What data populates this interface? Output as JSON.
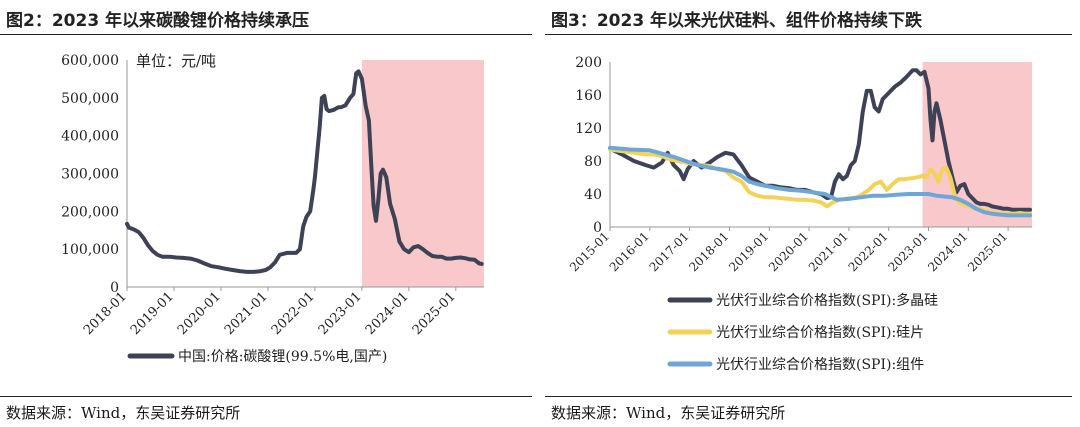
{
  "left": {
    "title": "图2：2023 年以来碳酸锂价格持续承压",
    "source": "数据来源：Wind，东吴证券研究所",
    "chart_data": {
      "type": "line",
      "title": "图2：2023 年以来碳酸锂价格持续承压",
      "unit_label": "单位：元/吨",
      "y_ticks": [
        "600,000",
        "500,000",
        "400,000",
        "300,000",
        "200,000",
        "100,000",
        "0"
      ],
      "x_ticks": [
        "2018-01",
        "2019-01",
        "2020-01",
        "2021-01",
        "2022-01",
        "2023-01",
        "2024-01",
        "2025-01"
      ],
      "ylim": [
        0,
        600000
      ],
      "xlim": [
        2018.0,
        2025.6
      ],
      "highlight": {
        "from": 2023.0,
        "to": 2025.6,
        "color": "#f8c8cb"
      },
      "series": [
        {
          "name": "中国:价格:碳酸锂(99.5%电,国产)",
          "color": "#3d4257",
          "x": [
            2018.0,
            2018.04,
            2018.15,
            2018.25,
            2018.35,
            2018.45,
            2018.55,
            2018.65,
            2018.75,
            2018.9,
            2019.05,
            2019.2,
            2019.35,
            2019.5,
            2019.65,
            2019.8,
            2019.95,
            2020.1,
            2020.25,
            2020.4,
            2020.55,
            2020.7,
            2020.85,
            2020.95,
            2021.05,
            2021.15,
            2021.25,
            2021.4,
            2021.5,
            2021.6,
            2021.68,
            2021.75,
            2021.82,
            2021.9,
            2021.97,
            2022.0,
            2022.1,
            2022.15,
            2022.2,
            2022.25,
            2022.3,
            2022.4,
            2022.5,
            2022.55,
            2022.65,
            2022.75,
            2022.82,
            2022.88,
            2022.93,
            2023.0,
            2023.08,
            2023.15,
            2023.2,
            2023.25,
            2023.3,
            2023.35,
            2023.4,
            2023.45,
            2023.52,
            2023.6,
            2023.7,
            2023.8,
            2023.9,
            2024.0,
            2024.1,
            2024.2,
            2024.3,
            2024.4,
            2024.5,
            2024.6,
            2024.7,
            2024.8,
            2024.9,
            2025.0,
            2025.1,
            2025.2,
            2025.3,
            2025.4,
            2025.5,
            2025.55
          ],
          "values": [
            167000,
            157000,
            152000,
            145000,
            130000,
            110000,
            95000,
            85000,
            80000,
            80000,
            78000,
            77000,
            75000,
            70000,
            62000,
            55000,
            52000,
            48000,
            45000,
            42000,
            40000,
            40000,
            42000,
            45000,
            52000,
            65000,
            85000,
            90000,
            90000,
            90000,
            100000,
            160000,
            185000,
            200000,
            260000,
            290000,
            420000,
            500000,
            505000,
            470000,
            465000,
            468000,
            475000,
            475000,
            480000,
            500000,
            510000,
            565000,
            570000,
            550000,
            480000,
            440000,
            320000,
            215000,
            175000,
            230000,
            300000,
            310000,
            290000,
            220000,
            180000,
            120000,
            100000,
            92000,
            105000,
            108000,
            100000,
            90000,
            82000,
            80000,
            80000,
            75000,
            75000,
            77000,
            78000,
            76000,
            73000,
            72000,
            62000,
            61000
          ]
        }
      ]
    }
  },
  "right": {
    "title": "图3：2023 年以来光伏硅料、组件价格持续下跌",
    "source": "数据来源：Wind，东吴证券研究所",
    "chart_data": {
      "type": "line",
      "title": "图3：2023 年以来光伏硅料、组件价格持续下跌",
      "y_ticks": [
        "200",
        "160",
        "120",
        "80",
        "40",
        "0"
      ],
      "x_ticks": [
        "2015-01",
        "2016-01",
        "2017-01",
        "2018-01",
        "2019-01",
        "2020-01",
        "2021-01",
        "2022-01",
        "2023-01",
        "2024-01",
        "2025-01"
      ],
      "ylim": [
        0,
        200
      ],
      "xlim": [
        2015.0,
        2025.6
      ],
      "highlight": {
        "from": 2022.85,
        "to": 2025.6,
        "color": "#f8c8cb"
      },
      "series": [
        {
          "name": "光伏行业综合价格指数(SPI):多晶硅",
          "color": "#3d4257",
          "x": [
            2015.0,
            2015.3,
            2015.6,
            2015.9,
            2016.1,
            2016.3,
            2016.45,
            2016.6,
            2016.75,
            2016.85,
            2016.95,
            2017.1,
            2017.3,
            2017.5,
            2017.7,
            2017.9,
            2018.1,
            2018.3,
            2018.5,
            2018.7,
            2018.9,
            2019.1,
            2019.3,
            2019.5,
            2019.7,
            2019.9,
            2020.1,
            2020.3,
            2020.45,
            2020.55,
            2020.65,
            2020.75,
            2020.85,
            2020.95,
            2021.05,
            2021.15,
            2021.25,
            2021.35,
            2021.45,
            2021.55,
            2021.65,
            2021.75,
            2021.85,
            2021.95,
            2022.05,
            2022.15,
            2022.3,
            2022.45,
            2022.6,
            2022.7,
            2022.8,
            2022.9,
            2023.0,
            2023.05,
            2023.1,
            2023.15,
            2023.2,
            2023.3,
            2023.4,
            2023.5,
            2023.6,
            2023.7,
            2023.8,
            2023.9,
            2024.0,
            2024.1,
            2024.2,
            2024.3,
            2024.4,
            2024.5,
            2024.6,
            2024.7,
            2024.8,
            2024.9,
            2025.0,
            2025.1,
            2025.2,
            2025.3,
            2025.4,
            2025.5,
            2025.55
          ],
          "values": [
            95,
            88,
            80,
            75,
            72,
            78,
            90,
            75,
            68,
            58,
            70,
            80,
            72,
            78,
            85,
            90,
            88,
            75,
            60,
            55,
            50,
            50,
            48,
            47,
            45,
            45,
            42,
            40,
            35,
            36,
            55,
            64,
            58,
            62,
            75,
            80,
            100,
            140,
            165,
            165,
            145,
            140,
            155,
            160,
            165,
            170,
            175,
            182,
            190,
            190,
            185,
            188,
            168,
            130,
            105,
            140,
            150,
            130,
            105,
            80,
            60,
            42,
            50,
            52,
            40,
            35,
            30,
            28,
            28,
            27,
            25,
            24,
            23,
            22,
            22,
            21,
            21,
            21,
            21,
            21,
            21
          ]
        },
        {
          "name": "光伏行业综合价格指数(SPI):硅片",
          "color": "#f3d25a",
          "x": [
            2015.0,
            2015.3,
            2015.6,
            2015.9,
            2016.1,
            2016.3,
            2016.5,
            2016.7,
            2016.9,
            2017.1,
            2017.3,
            2017.5,
            2017.7,
            2017.9,
            2018.1,
            2018.3,
            2018.5,
            2018.7,
            2018.9,
            2019.1,
            2019.3,
            2019.5,
            2019.7,
            2019.9,
            2020.1,
            2020.3,
            2020.45,
            2020.6,
            2020.75,
            2020.9,
            2021.05,
            2021.2,
            2021.35,
            2021.5,
            2021.65,
            2021.8,
            2021.95,
            2022.1,
            2022.25,
            2022.4,
            2022.55,
            2022.7,
            2022.85,
            2022.95,
            2023.05,
            2023.15,
            2023.25,
            2023.35,
            2023.45,
            2023.55,
            2023.65,
            2023.75,
            2023.85,
            2023.95,
            2024.1,
            2024.25,
            2024.4,
            2024.55,
            2024.7,
            2024.85,
            2025.0,
            2025.15,
            2025.3,
            2025.45,
            2025.55
          ],
          "values": [
            94,
            92,
            90,
            88,
            88,
            86,
            82,
            80,
            78,
            76,
            75,
            74,
            70,
            68,
            60,
            55,
            42,
            38,
            36,
            36,
            35,
            34,
            33,
            33,
            32,
            30,
            25,
            30,
            33,
            34,
            35,
            36,
            40,
            45,
            52,
            55,
            45,
            52,
            58,
            58,
            59,
            60,
            62,
            60,
            70,
            65,
            55,
            70,
            72,
            60,
            40,
            30,
            28,
            26,
            24,
            22,
            20,
            18,
            17,
            16,
            16,
            16,
            17,
            16,
            16
          ]
        },
        {
          "name": "光伏行业综合价格指数(SPI):组件",
          "color": "#6ea6d8",
          "x": [
            2015.0,
            2015.5,
            2016.0,
            2016.3,
            2016.6,
            2016.9,
            2017.2,
            2017.5,
            2017.8,
            2018.1,
            2018.3,
            2018.5,
            2018.7,
            2018.9,
            2019.2,
            2019.5,
            2019.8,
            2020.1,
            2020.4,
            2020.7,
            2021.0,
            2021.3,
            2021.6,
            2021.9,
            2022.2,
            2022.5,
            2022.8,
            2023.0,
            2023.2,
            2023.4,
            2023.6,
            2023.8,
            2024.0,
            2024.2,
            2024.4,
            2024.6,
            2024.8,
            2025.0,
            2025.2,
            2025.4,
            2025.55
          ],
          "values": [
            96,
            94,
            93,
            89,
            85,
            80,
            75,
            72,
            70,
            67,
            62,
            55,
            52,
            50,
            47,
            45,
            44,
            42,
            40,
            33,
            34,
            36,
            38,
            38,
            39,
            40,
            40,
            40,
            38,
            37,
            36,
            33,
            28,
            22,
            18,
            16,
            15,
            14,
            14,
            14,
            14
          ]
        }
      ]
    }
  }
}
